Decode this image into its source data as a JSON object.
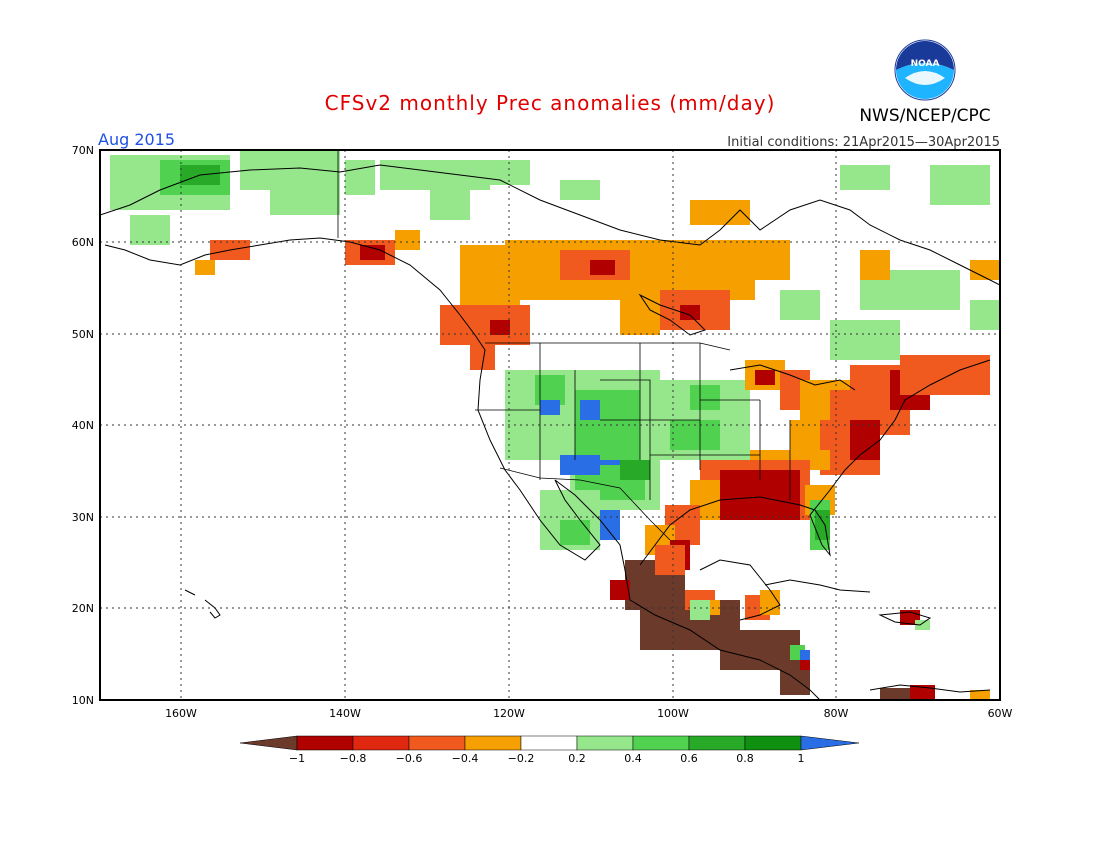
{
  "title": "CFSv2 monthly Prec anomalies (mm/day)",
  "month_label": "Aug 2015",
  "agency": "NWS/NCEP/CPC",
  "logo_text": "NOAA",
  "initial_conditions": "Initial conditions: 21Apr2015—30Apr2015",
  "lat_labels": [
    "70N",
    "60N",
    "50N",
    "40N",
    "30N",
    "20N",
    "10N"
  ],
  "lon_labels": [
    "160W",
    "140W",
    "120W",
    "100W",
    "80W",
    "60W"
  ],
  "colorbar": {
    "labels": [
      "−1",
      "−0.8",
      "−0.6",
      "−0.4",
      "−0.2",
      "0.2",
      "0.4",
      "0.6",
      "0.8",
      "1"
    ],
    "colors": [
      "#6b3a2a",
      "#b00000",
      "#e02810",
      "#f05a1e",
      "#f5a000",
      "#ffffff",
      "#96e68c",
      "#50d250",
      "#28aa28",
      "#109010",
      "#2a6ee6"
    ]
  },
  "colors": {
    "title": "#e00000",
    "month_label": "#1e50e6",
    "wet_light": "#96e68c",
    "wet_mid": "#50d250",
    "wet_strong": "#28aa28",
    "wet_extreme": "#2a6ee6",
    "dry_light": "#f5a000",
    "dry_mid": "#f05a1e",
    "dry_strong": "#b00000",
    "dry_extreme": "#6b3a2a"
  }
}
